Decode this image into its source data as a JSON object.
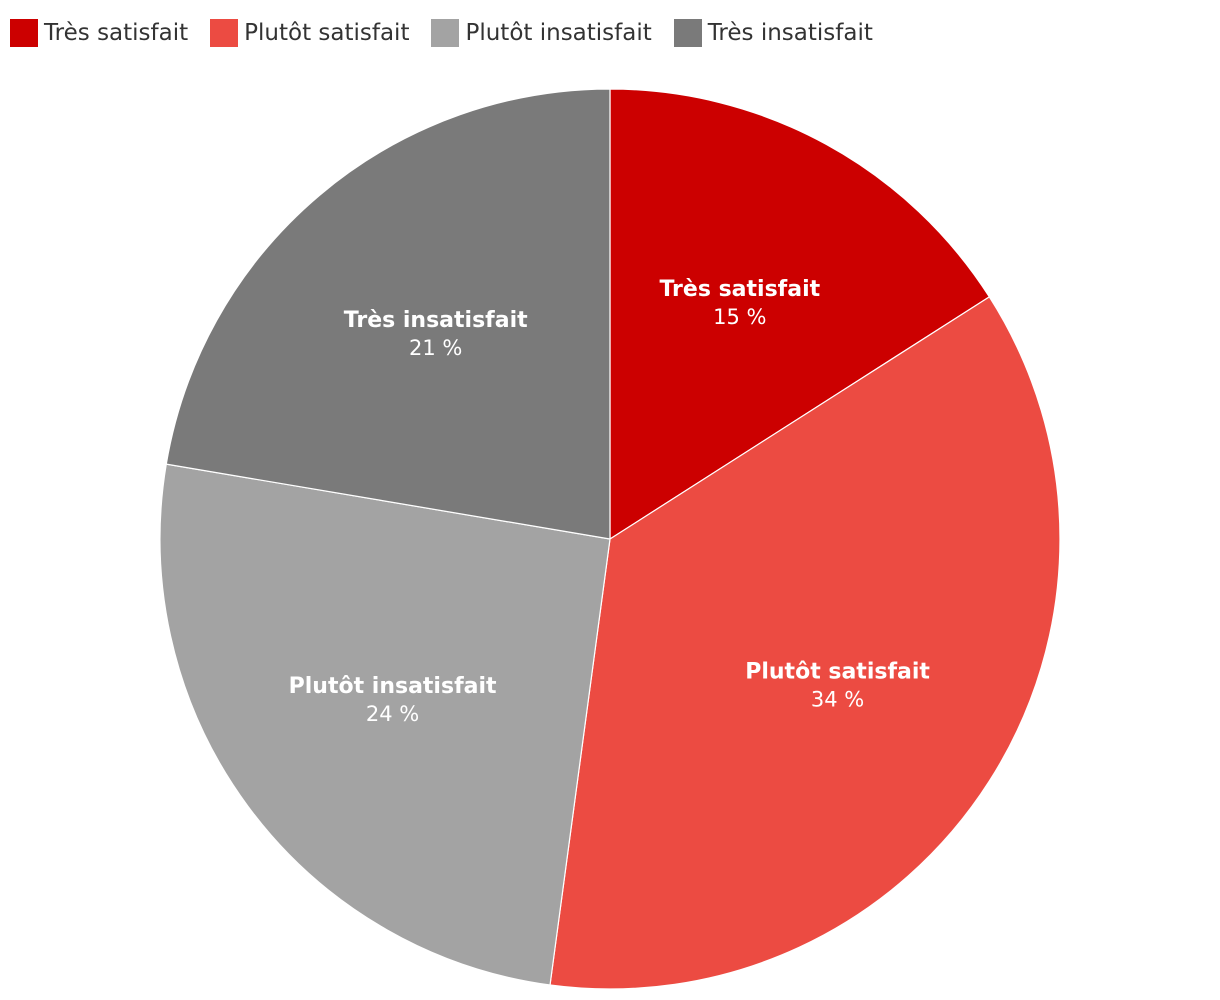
{
  "chart_data": {
    "type": "pie",
    "title": "",
    "legend_position": "top-left",
    "slices": [
      {
        "label": "Très satisfait",
        "value": 15,
        "value_label": "15 %",
        "color": "#cc0000"
      },
      {
        "label": "Plutôt satisfait",
        "value": 34,
        "value_label": "34 %",
        "color": "#ec4b42"
      },
      {
        "label": "Plutôt insatisfait",
        "value": 24,
        "value_label": "24 %",
        "color": "#a3a3a3"
      },
      {
        "label": "Très insatisfait",
        "value": 21,
        "value_label": "21 %",
        "color": "#7a7a7a"
      }
    ]
  }
}
